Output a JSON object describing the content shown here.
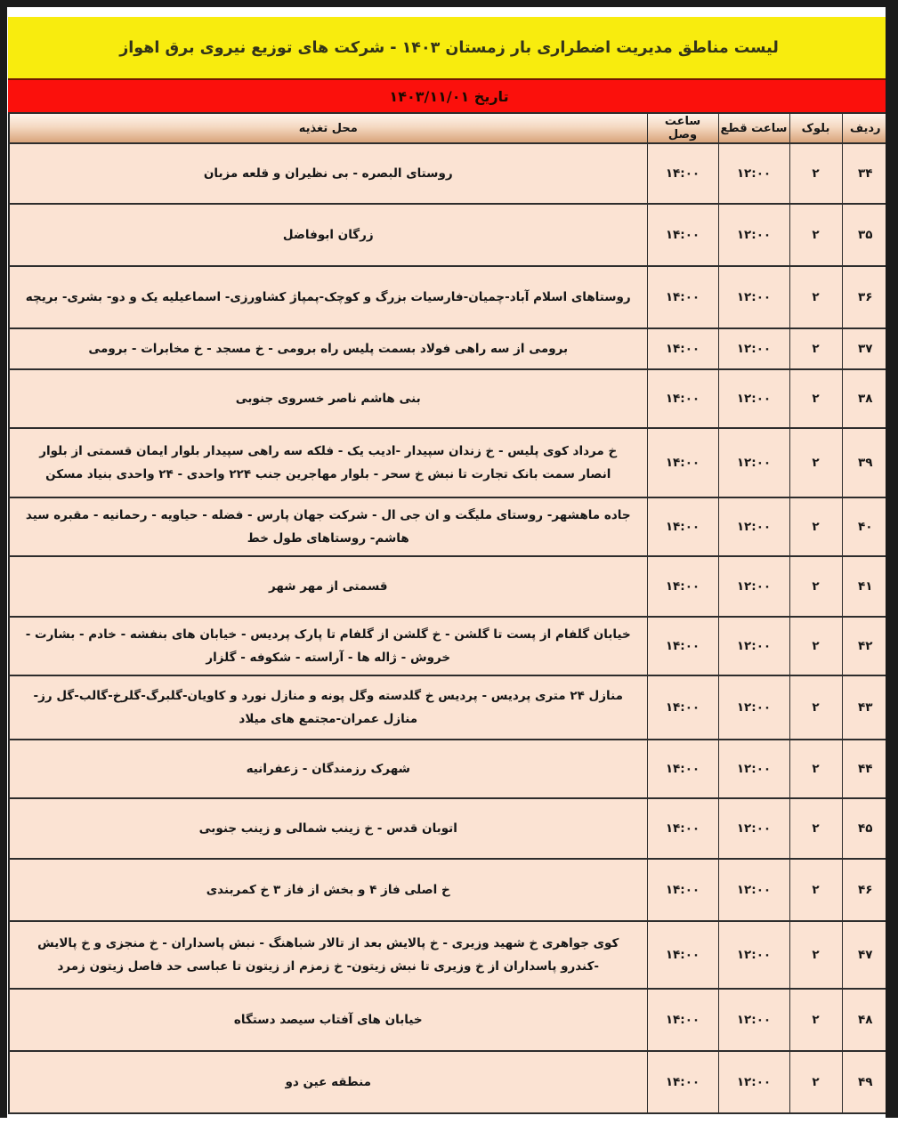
{
  "title": "لیست مناطق مدیریت اضطراری بار زمستان ۱۴۰۳ - شرکت های توزیع نیروی برق اهواز",
  "date_banner": "تاریخ ۱۴۰۳/۱۱/۰۱",
  "colors": {
    "title_bg": "#f8ec0e",
    "date_bg": "#fb100c",
    "cell_bg": "#fbe3d3",
    "header_gradient_bottom": "#d9a47c",
    "frame": "#1b1b1b"
  },
  "table": {
    "headers": {
      "row": "ردیف",
      "block": "بلوک",
      "cut_time": "ساعت قطع",
      "reconnect_time": "ساعت وصل",
      "location": "محل تغذیه"
    },
    "rows": [
      {
        "row": "۳۴",
        "block": "۲",
        "cut_time": "۱۲:۰۰",
        "reconnect_time": "۱۴:۰۰",
        "location": "روستای البصره - بی نظیران و قلعه مزبان"
      },
      {
        "row": "۳۵",
        "block": "۲",
        "cut_time": "۱۲:۰۰",
        "reconnect_time": "۱۴:۰۰",
        "location": "زرگان ابوفاضل"
      },
      {
        "row": "۳۶",
        "block": "۲",
        "cut_time": "۱۲:۰۰",
        "reconnect_time": "۱۴:۰۰",
        "location": "روستاهای اسلام آباد-چمیان-فارسیات بزرگ و کوچک-پمپاژ کشاورزی- اسماعیلیه یک و دو- بشری- بریچه"
      },
      {
        "row": "۳۷",
        "block": "۲",
        "cut_time": "۱۲:۰۰",
        "reconnect_time": "۱۴:۰۰",
        "location": "برومی از سه راهی فولاد بسمت پلیس راه برومی - خ مسجد - خ مخابرات - برومی"
      },
      {
        "row": "۳۸",
        "block": "۲",
        "cut_time": "۱۲:۰۰",
        "reconnect_time": "۱۴:۰۰",
        "location": "بنی هاشم ناصر خسروی جنوبی"
      },
      {
        "row": "۳۹",
        "block": "۲",
        "cut_time": "۱۲:۰۰",
        "reconnect_time": "۱۴:۰۰",
        "location": "خ مرداد کوی پلیس - خ زندان سپیدار -ادیب یک - فلکه سه راهی سپیدار بلوار ایمان قسمتی از بلوار انصار سمت بانک تجارت تا نبش خ سحر - بلوار مهاجرین جنب ۲۲۴ واحدی - ۲۴ واحدی بنیاد مسکن"
      },
      {
        "row": "۴۰",
        "block": "۲",
        "cut_time": "۱۲:۰۰",
        "reconnect_time": "۱۴:۰۰",
        "location": "جاده ماهشهر- روستای ملیگت و ان جی ال - شرکت جهان پارس - فضله - حیاویه - رحمانیه - مقبره سید هاشم- روستاهای طول خط"
      },
      {
        "row": "۴۱",
        "block": "۲",
        "cut_time": "۱۲:۰۰",
        "reconnect_time": "۱۴:۰۰",
        "location": "قسمتی از مهر شهر"
      },
      {
        "row": "۴۲",
        "block": "۲",
        "cut_time": "۱۲:۰۰",
        "reconnect_time": "۱۴:۰۰",
        "location": "خیابان گلفام از پست تا گلشن - خ گلشن از گلفام تا پارک پردیس - خیابان های بنفشه - خادم - بشارت - خروش - ژاله ها - آراسته - شکوفه - گلزار"
      },
      {
        "row": "۴۳",
        "block": "۲",
        "cut_time": "۱۲:۰۰",
        "reconnect_time": "۱۴:۰۰",
        "location": "منازل ۲۴ متری پردیس - پردیس خ گلدسته وگل پونه و منازل نورد و کاویان-گلبرگ-گلرخ-گالب-گل رز- منازل عمران-مجتمع های میلاد"
      },
      {
        "row": "۴۴",
        "block": "۲",
        "cut_time": "۱۲:۰۰",
        "reconnect_time": "۱۴:۰۰",
        "location": "شهرک رزمندگان - زعفرانیه"
      },
      {
        "row": "۴۵",
        "block": "۲",
        "cut_time": "۱۲:۰۰",
        "reconnect_time": "۱۴:۰۰",
        "location": "اتوبان قدس - خ زینب شمالی و زینب جنوبی"
      },
      {
        "row": "۴۶",
        "block": "۲",
        "cut_time": "۱۲:۰۰",
        "reconnect_time": "۱۴:۰۰",
        "location": "خ اصلی فاز ۴ و بخش از فاز ۳ خ کمربندی"
      },
      {
        "row": "۴۷",
        "block": "۲",
        "cut_time": "۱۲:۰۰",
        "reconnect_time": "۱۴:۰۰",
        "location": "کوی جواهری خ شهید وزیری - خ پالایش بعد از تالار شباهنگ - نبش پاسداران - خ منجزی و خ پالایش -کندرو پاسداران از خ وزیری تا نبش زیتون- خ زمزم از زیتون تا عباسی حد فاصل زیتون زمرد"
      },
      {
        "row": "۴۸",
        "block": "۲",
        "cut_time": "۱۲:۰۰",
        "reconnect_time": "۱۴:۰۰",
        "location": "خیابان های آفتاب سیصد دستگاه"
      },
      {
        "row": "۴۹",
        "block": "۲",
        "cut_time": "۱۲:۰۰",
        "reconnect_time": "۱۴:۰۰",
        "location": "منطقه عین دو"
      }
    ]
  }
}
